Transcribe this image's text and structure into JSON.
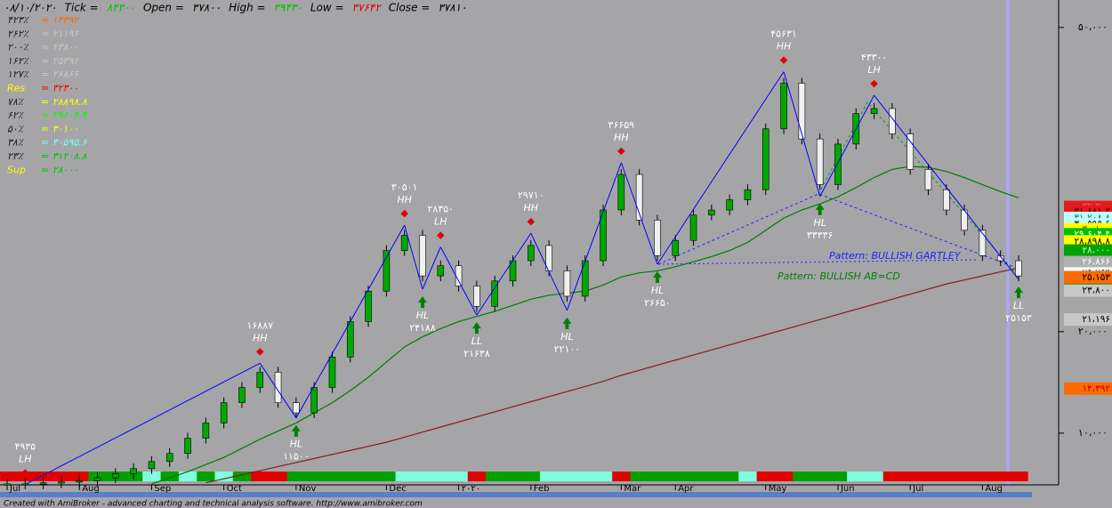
{
  "chart_data": {
    "type": "candlestick",
    "header": [
      {
        "text": "۰۸/۱۰/۲۰۲۰",
        "color": "#000000"
      },
      {
        "text": "Tick =",
        "color": "#000000"
      },
      {
        "text": "۸۴۳۰۰",
        "color": "#00c000"
      },
      {
        "text": "Open =",
        "color": "#000000"
      },
      {
        "text": "۳۷۸۰۰",
        "color": "#000000"
      },
      {
        "text": "High =",
        "color": "#000000"
      },
      {
        "text": "۳۹۴۳۰",
        "color": "#00c000"
      },
      {
        "text": "Low =",
        "color": "#000000"
      },
      {
        "text": "۳۷۶۴۲",
        "color": "#e00000"
      },
      {
        "text": "Close =",
        "color": "#000000"
      },
      {
        "text": "۳۷۸۱۰",
        "color": "#000000"
      }
    ],
    "levels": [
      {
        "level": "۴۲۳٪",
        "price": "= ۱۴۳۹۲",
        "level_color": "#202020",
        "price_color": "#ff6a00"
      },
      {
        "level": "۲۶۲٪",
        "price": "= ۲۱۱۹۶",
        "level_color": "#202020",
        "price_color": "#c8c8c8"
      },
      {
        "level": "۲۰۰٪",
        "price": "= ۲۳۸۰۰",
        "level_color": "#202020",
        "price_color": "#c8c8c8"
      },
      {
        "level": "۱۶۲٪",
        "price": "= ۲۵۳۹۶",
        "level_color": "#202020",
        "price_color": "#c8c8c8"
      },
      {
        "level": "۱۲۷٪",
        "price": "= ۲۶۸۶۶",
        "level_color": "#202020",
        "price_color": "#c8c8c8"
      },
      {
        "level": "Res",
        "price": "= ۳۲۳۰۰",
        "level_color": "#ffff00",
        "price_color": "#ff0000"
      },
      {
        "level": "۷۸٪",
        "price": "= ۲۸۸۹۸.۸",
        "level_color": "#202020",
        "price_color": "#ffff00"
      },
      {
        "level": "۶۲٪",
        "price": "= ۲۹۶۰۴.۴",
        "level_color": "#202020",
        "price_color": "#00ff00"
      },
      {
        "level": "۵۰٪",
        "price": "= ۳۰۱۰۰",
        "level_color": "#202020",
        "price_color": "#ffff00"
      },
      {
        "level": "۳۸٪",
        "price": "= ۳۰۵۹۵.۶",
        "level_color": "#202020",
        "price_color": "#80ffff"
      },
      {
        "level": "۲۳٪",
        "price": "= ۳۱۲۰۸.۸",
        "level_color": "#202020",
        "price_color": "#00c000"
      },
      {
        "level": "Sup",
        "price": "= ۲۸۰۰۰",
        "level_color": "#ffff00",
        "price_color": "#00c000"
      }
    ],
    "categories": [
      "Jul",
      null,
      null,
      null,
      "Aug",
      null,
      null,
      null,
      "Sep",
      null,
      null,
      null,
      "Oct",
      null,
      null,
      null,
      "Nov",
      null,
      null,
      null,
      null,
      "Dec",
      null,
      null,
      null,
      "۲۰۲۰",
      null,
      null,
      null,
      "Feb",
      null,
      null,
      null,
      null,
      "Mar",
      null,
      null,
      "Apr",
      null,
      null,
      null,
      null,
      "May",
      null,
      null,
      null,
      "Jun",
      null,
      null,
      null,
      "Jul",
      null,
      null,
      null,
      "Aug",
      null,
      null
    ],
    "series": [
      {
        "up_color": "#00a800",
        "down_color": "#f0f0f0",
        "values": [
          5000,
          5000,
          5100,
          5200,
          5300,
          5600,
          6000,
          6500,
          7200,
          8000,
          9500,
          11000,
          13000,
          14500,
          16000,
          13000,
          12000,
          14500,
          17500,
          21000,
          24000,
          28000,
          29500,
          25500,
          26500,
          24500,
          22500,
          25000,
          27000,
          28500,
          26000,
          23500,
          27000,
          32000,
          35500,
          31000,
          27500,
          29000,
          31500,
          32000,
          33000,
          34000,
          40000,
          44500,
          39000,
          34500,
          38500,
          41500,
          42000,
          39500,
          36000,
          34000,
          32000,
          30000,
          27500,
          27000,
          25500
        ]
      }
    ],
    "overlays": [
      {
        "color": "#8b1a1a",
        "values": [
          null,
          null,
          null,
          null,
          null,
          null,
          null,
          null,
          null,
          null,
          null,
          5100,
          5500,
          5900,
          6300,
          6700,
          7100,
          7500,
          7900,
          8300,
          8700,
          9100,
          9600,
          10100,
          10600,
          11100,
          11600,
          12100,
          12600,
          13100,
          13600,
          14100,
          14600,
          15100,
          15700,
          16200,
          16700,
          17200,
          17700,
          18200,
          18700,
          19200,
          19700,
          20200,
          20700,
          21200,
          21700,
          22200,
          22700,
          23200,
          23700,
          24200,
          24700,
          25100,
          25500,
          25900,
          26300
        ]
      },
      {
        "color": "#007a00",
        "values": [
          null,
          null,
          null,
          null,
          null,
          null,
          null,
          null,
          5000,
          5600,
          6200,
          6900,
          7600,
          8500,
          9400,
          10200,
          11000,
          12000,
          13000,
          14200,
          15500,
          17000,
          18500,
          19500,
          20300,
          21000,
          21500,
          22000,
          22600,
          23200,
          23600,
          23800,
          24000,
          24600,
          25400,
          25800,
          26000,
          26400,
          26900,
          27400,
          28000,
          28800,
          30000,
          31200,
          32000,
          32600,
          33300,
          34200,
          35200,
          36000,
          36300,
          36200,
          35800,
          35200,
          34500,
          33800,
          33200
        ]
      }
    ],
    "swings": {
      "zigzag_color": "#0000ff",
      "tags": [
        null,
        "LH",
        null,
        null,
        null,
        null,
        null,
        null,
        null,
        null,
        null,
        null,
        null,
        null,
        "HH",
        null,
        "HL",
        null,
        null,
        null,
        null,
        null,
        "HH",
        "HL",
        "LH",
        null,
        "LL",
        null,
        null,
        "HH",
        null,
        "HL",
        null,
        null,
        "HH",
        null,
        "HL",
        null,
        null,
        null,
        null,
        null,
        null,
        "HH",
        null,
        "HL",
        null,
        null,
        "LH",
        null,
        null,
        null,
        null,
        null,
        null,
        null,
        "LL"
      ],
      "values": [
        null,
        4935,
        null,
        null,
        null,
        null,
        null,
        null,
        null,
        null,
        null,
        null,
        null,
        null,
        16887,
        null,
        11500,
        null,
        null,
        null,
        null,
        null,
        30501,
        24188,
        28350,
        null,
        21638,
        null,
        null,
        29710,
        null,
        22100,
        null,
        null,
        36659,
        null,
        26650,
        null,
        null,
        null,
        null,
        null,
        null,
        45631,
        null,
        33336,
        null,
        null,
        43300,
        null,
        null,
        null,
        null,
        null,
        null,
        null,
        25153
      ],
      "value_labels": [
        null,
        "۴۹۳۵",
        null,
        null,
        null,
        null,
        null,
        null,
        null,
        null,
        null,
        null,
        null,
        null,
        "۱۶۸۸۷",
        null,
        "۱۱۵۰۰",
        null,
        null,
        null,
        null,
        null,
        "۳۰۵۰۱",
        "۲۴۱۸۸",
        "۲۸۳۵۰",
        null,
        "۲۱۶۳۸",
        null,
        null,
        "۲۹۷۱۰",
        null,
        "۲۲۱۰۰",
        null,
        null,
        "۳۶۶۵۹",
        null,
        "۲۶۶۵۰",
        null,
        null,
        null,
        null,
        null,
        null,
        "۴۵۶۳۱",
        null,
        "۳۳۳۳۶",
        null,
        null,
        "۴۳۳۰۰",
        null,
        null,
        null,
        null,
        null,
        null,
        null,
        "۲۵۱۵۳"
      ]
    },
    "trend_bar": [
      "#e00000",
      "#e00000",
      "#e00000",
      "#e00000",
      "#e00000",
      "#00a000",
      "#00a000",
      "#00a000",
      "#80ffe0",
      "#00a000",
      "#80ffe0",
      "#00a000",
      "#80ffe0",
      "#00a000",
      "#e00000",
      "#e00000",
      "#00a000",
      "#00a000",
      "#00a000",
      "#00a000",
      "#00a000",
      "#00a000",
      "#80ffe0",
      "#80ffe0",
      "#80ffe0",
      "#80ffe0",
      "#e00000",
      "#00a000",
      "#00a000",
      "#00a000",
      "#80ffe0",
      "#80ffe0",
      "#80ffe0",
      "#80ffe0",
      "#e00000",
      "#00a000",
      "#00a000",
      "#00a000",
      "#00a000",
      "#00a000",
      "#00a000",
      "#80ffe0",
      "#e00000",
      "#e00000",
      "#00a000",
      "#00a000",
      "#00a000",
      "#80ffe0",
      "#80ffe0",
      "#e00000",
      "#e00000",
      "#e00000",
      "#e00000",
      "#e00000",
      "#e00000",
      "#e00000",
      "#e00000"
    ],
    "patterns": [
      {
        "text": "Pattern: BULLISH GARTLEY",
        "color": "#2020ff"
      },
      {
        "text": "Pattern: BULLISH AB=CD",
        "color": "#008000"
      }
    ],
    "ylim": [
      4900,
      52700
    ],
    "yticks": [
      {
        "value": 10000,
        "label": "۱۰،۰۰۰"
      },
      {
        "value": 20000,
        "label": "۲۰،۰۰۰"
      },
      {
        "value": 50000,
        "label": "۵۰،۰۰۰"
      }
    ],
    "price_tags": [
      {
        "value": 32200,
        "label": "۳۲،۲۰۰",
        "color": "#e00000"
      },
      {
        "value": 32300,
        "label": "۳۲،۳۰۰",
        "color": "#ff8080",
        "background": "#e41b1b"
      },
      {
        "value": 31881.3,
        "label": "۳۱،۸۸۱.۳",
        "color": "#500000",
        "background": "#e41b1b"
      },
      {
        "value": 31208.8,
        "label": "۳۱،۲۰۸.۸",
        "color": "#008080",
        "background": "#c0ffff"
      },
      {
        "value": 30595.6,
        "label": "۳۰،۵۹۵.۶",
        "color": "#000000",
        "background": "#c0ffff"
      },
      {
        "value": 30100,
        "label": "۳۰،۱۰۰",
        "color": "#806000",
        "background": "#ffff00"
      },
      {
        "value": 29604.4,
        "label": "۲۹،۶۰۴.۴",
        "color": "#ffffff",
        "background": "#00c000"
      },
      {
        "value": 28898.8,
        "label": "۲۸،۸۹۸.۸",
        "color": "#000000",
        "background": "#ffff00"
      },
      {
        "value": 28000,
        "label": "۲۸،۰۰۰",
        "color": "#c0ffc0",
        "background": "#00a000"
      },
      {
        "value": 26866,
        "label": "۲۶،۸۶۶",
        "color": "#ffffff",
        "background": "#b0b0b0"
      },
      {
        "value": 25764,
        "label": "۲۵،۷۶۴",
        "color": "#ffffff",
        "background": "#000000"
      },
      {
        "value": 25764,
        "label": "۲۵،۷۶۴",
        "color": "#ffffff",
        "background": "#000000"
      },
      {
        "value": 25764,
        "label": "۲۵،۷۶۴",
        "color": "#000000",
        "background": "#ffffff"
      },
      {
        "value": 25396,
        "label": "۲۵،۳۹۶",
        "color": "#000000",
        "background": "#b8b8b8"
      },
      {
        "value": 25153,
        "label": "۲۵،۱۵۳",
        "color": "#ffffff",
        "background": "#007000"
      },
      {
        "value": 25153,
        "label": "۲۵،۱۵۳",
        "color": "#ffffff",
        "background": "#008000"
      },
      {
        "value": 25153,
        "label": "۲۵،۱۵۳",
        "color": "#000000",
        "background": "#ff6a00"
      },
      {
        "value": 23800,
        "label": "۲۳،۸۰۰",
        "color": "#000000",
        "background": "#c8c8c8"
      },
      {
        "value": 21196,
        "label": "۲۱،۱۹۶",
        "color": "#000000",
        "background": "#c8c8c8"
      },
      {
        "value": 14392,
        "label": "۱۴،۳۹۲",
        "color": "#c00000",
        "background": "#ff6a00"
      }
    ],
    "footer": "Created with AmiBroker - advanced charting and technical analysis software. http://www.amibroker.com"
  }
}
